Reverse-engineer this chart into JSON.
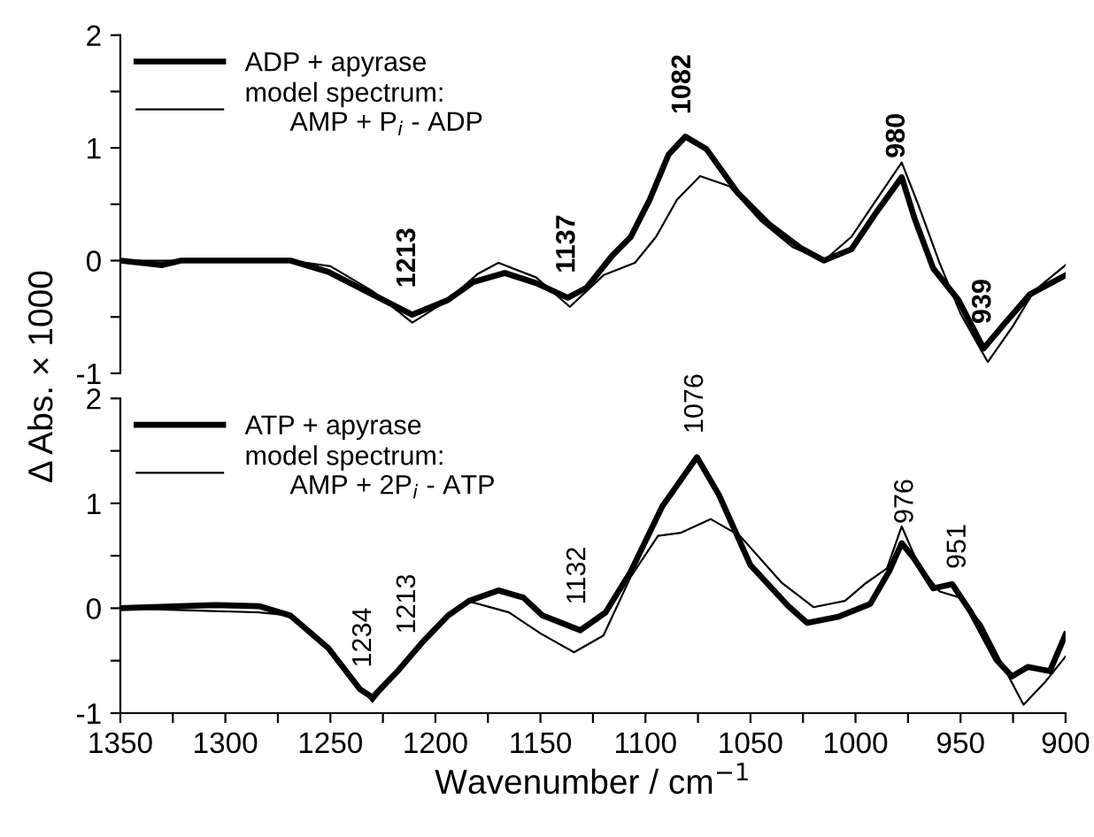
{
  "chart_data": [
    {
      "type": "line",
      "ylabel": "Δ Abs. × 1000",
      "xlim": [
        1350,
        900
      ],
      "xticks": [
        1350,
        1300,
        1250,
        1200,
        1150,
        1100,
        1050,
        1000,
        950,
        900
      ],
      "ylim": [
        -1,
        2
      ],
      "yticks": [
        -1,
        {
          "value": -0.5,
          "label": null
        },
        0,
        {
          "value": 0.5,
          "label": null
        },
        1,
        {
          "value": 1.5,
          "label": null
        },
        2
      ],
      "tick_labels": "y",
      "grid": false,
      "legend": "top left",
      "marker": "none",
      "line_style": "solid",
      "series": [
        {
          "name": "ADP + apyrase",
          "color": "#000000",
          "x": [
            1350,
            1330,
            1321,
            1269,
            1251,
            1230,
            1211,
            1194,
            1182,
            1167,
            1152,
            1137,
            1128,
            1116,
            1107,
            1098,
            1089,
            1081,
            1071,
            1056,
            1041,
            1026,
            1015,
            1002,
            990,
            978,
            972,
            963,
            951,
            939,
            930,
            917,
            900
          ],
          "values": [
            0,
            -0.04,
            0,
            0,
            -0.1,
            -0.3,
            -0.48,
            -0.35,
            -0.19,
            -0.11,
            -0.2,
            -0.33,
            -0.24,
            0.04,
            0.21,
            0.54,
            0.94,
            1.1,
            0.99,
            0.6,
            0.32,
            0.11,
            0,
            0.1,
            0.43,
            0.74,
            0.38,
            -0.07,
            -0.35,
            -0.78,
            -0.58,
            -0.3,
            -0.13
          ]
        },
        {
          "name": "model spectrum:\n      AMP + P$_{i}$ - ADP",
          "color": "#000000",
          "x": [
            1350,
            1269,
            1250,
            1230,
            1211,
            1194,
            1180,
            1170,
            1152,
            1136,
            1120,
            1105,
            1095,
            1085,
            1074,
            1060,
            1045,
            1030,
            1015,
            1002,
            990,
            978,
            970,
            960,
            950,
            937,
            925,
            915,
            900
          ],
          "values": [
            0,
            0,
            -0.05,
            -0.27,
            -0.55,
            -0.35,
            -0.12,
            -0.02,
            -0.15,
            -0.41,
            -0.13,
            -0.02,
            0.21,
            0.54,
            0.75,
            0.66,
            0.35,
            0.12,
            0,
            0.21,
            0.54,
            0.87,
            0.49,
            -0.02,
            -0.47,
            -0.9,
            -0.58,
            -0.27,
            -0.04
          ]
        }
      ],
      "annotations": [
        {
          "text": "1213",
          "x": 1213,
          "y": -0.46
        },
        {
          "text": "1137",
          "x": 1137,
          "y": -0.33
        },
        {
          "text": "1082",
          "x": 1082,
          "y": 1.08
        },
        {
          "text": "980",
          "x": 980,
          "y": 0.69
        },
        {
          "text": "939",
          "x": 939,
          "y": -0.78
        }
      ]
    },
    {
      "type": "line",
      "xlabel": "Wavenumber / cm$^{−1}$",
      "xlim": [
        1350,
        900
      ],
      "xticks": [
        1350,
        {
          "value": 1325,
          "label": null
        },
        1300,
        {
          "value": 1275,
          "label": null
        },
        1250,
        {
          "value": 1225,
          "label": null
        },
        1200,
        {
          "value": 1175,
          "label": null
        },
        1150,
        {
          "value": 1125,
          "label": null
        },
        1100,
        {
          "value": 1075,
          "label": null
        },
        1050,
        {
          "value": 1025,
          "label": null
        },
        1000,
        {
          "value": 975,
          "label": null
        },
        950,
        {
          "value": 925,
          "label": null
        },
        900
      ],
      "ylim": [
        -1,
        2
      ],
      "yticks": [
        -1,
        {
          "value": -0.5,
          "label": null
        },
        0,
        {
          "value": 0.5,
          "label": null
        },
        1,
        {
          "value": 1.5,
          "label": null
        },
        2
      ],
      "grid": false,
      "legend": "top left",
      "marker": "none",
      "line_style": "solid",
      "series": [
        {
          "name": "ATP + apyrase",
          "color": "#000000",
          "x": [
            1350,
            1305,
            1284,
            1269,
            1251,
            1236,
            1230,
            1218,
            1206,
            1194,
            1184,
            1170,
            1158,
            1149,
            1131,
            1119,
            1107,
            1092,
            1075.5,
            1065,
            1050,
            1032,
            1023,
            1008,
            993,
            984,
            978,
            972,
            963,
            954,
            945,
            933,
            925.5,
            918,
            907.5,
            900
          ],
          "values": [
            0,
            0.03,
            0.02,
            -0.07,
            -0.38,
            -0.77,
            -0.85,
            -0.6,
            -0.32,
            -0.07,
            0.07,
            0.17,
            0.1,
            -0.07,
            -0.21,
            -0.04,
            0.35,
            0.97,
            1.44,
            1.08,
            0.41,
            0.02,
            -0.14,
            -0.08,
            0.04,
            0.35,
            0.62,
            0.47,
            0.19,
            0.23,
            -0.04,
            -0.49,
            -0.65,
            -0.56,
            -0.6,
            -0.25
          ]
        },
        {
          "name": "model spectrum:\n      AMP + 2P$_{i}$ - ATP",
          "color": "#000000",
          "x": [
            1350,
            1284,
            1269,
            1251,
            1230,
            1218,
            1206,
            1194,
            1183,
            1165,
            1150,
            1134,
            1120,
            1107,
            1094,
            1083,
            1069,
            1055,
            1035,
            1020,
            1005,
            995,
            985,
            978,
            970,
            960,
            950,
            940,
            930,
            920,
            910,
            900
          ],
          "values": [
            0,
            -0.04,
            -0.07,
            -0.38,
            -0.89,
            -0.6,
            -0.32,
            -0.07,
            0.06,
            -0.04,
            -0.24,
            -0.42,
            -0.26,
            0.3,
            0.69,
            0.72,
            0.85,
            0.69,
            0.24,
            0.01,
            0.07,
            0.24,
            0.38,
            0.78,
            0.41,
            0.16,
            0.1,
            -0.15,
            -0.54,
            -0.92,
            -0.71,
            -0.46
          ]
        }
      ],
      "annotations": [
        {
          "text": "1234",
          "x": 1234,
          "y": -0.8
        },
        {
          "text": "1213",
          "x": 1213,
          "y": -0.48
        },
        {
          "text": "1132",
          "x": 1132,
          "y": -0.2
        },
        {
          "text": "1076",
          "x": 1076,
          "y": 1.43
        },
        {
          "text": "976",
          "x": 976,
          "y": 0.57
        },
        {
          "text": "951",
          "x": 951,
          "y": 0.14
        }
      ]
    }
  ]
}
